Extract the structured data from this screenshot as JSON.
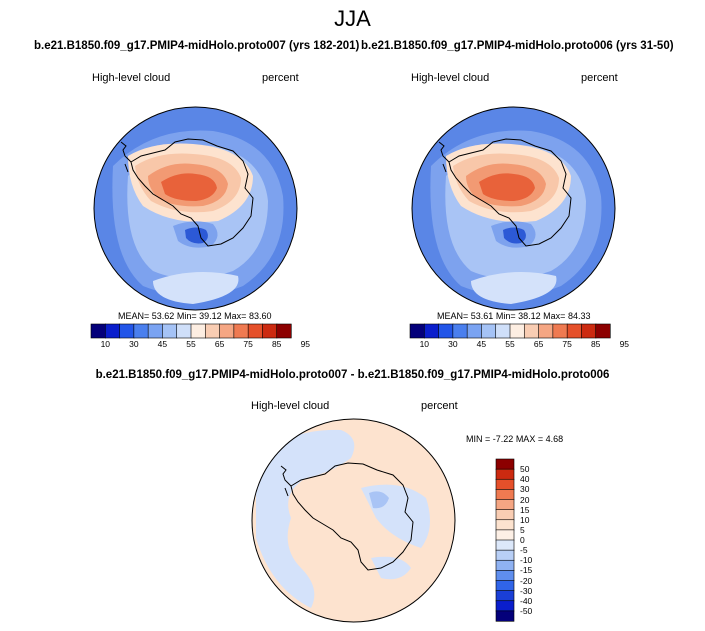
{
  "season": "JJA",
  "panels": [
    {
      "title": "b.e21.B1850.f09_g17.PMIP4-midHolo.proto007 (yrs 182-201)",
      "variable": "High-level cloud",
      "units": "percent",
      "stats": {
        "mean_label": "MEAN=",
        "mean": "53.62",
        "min_label": "Min=",
        "min": "39.12",
        "max_label": "Max=",
        "max": "83.60"
      }
    },
    {
      "title": "b.e21.B1850.f09_g17.PMIP4-midHolo.proto006 (yrs 31-50)",
      "variable": "High-level cloud",
      "units": "percent",
      "stats": {
        "mean_label": "MEAN=",
        "mean": "53.61",
        "min_label": "Min=",
        "min": "38.12",
        "max_label": "Max=",
        "max": "84.33"
      }
    }
  ],
  "abs_colorbar": {
    "colors": [
      "#04007a",
      "#0a1ecc",
      "#2255e8",
      "#4a7fee",
      "#7aa3f2",
      "#a5c3f6",
      "#cfdff9",
      "#fdeee2",
      "#f9cdb3",
      "#f5a683",
      "#ef7a51",
      "#e5502a",
      "#cc2a10",
      "#8c0000"
    ],
    "tick_labels": [
      "10",
      "30",
      "45",
      "55",
      "65",
      "75",
      "85",
      "95"
    ]
  },
  "difference": {
    "title": "b.e21.B1850.f09_g17.PMIP4-midHolo.proto007 - b.e21.B1850.f09_g17.PMIP4-midHolo.proto006",
    "variable": "High-level cloud",
    "units": "percent",
    "stats": {
      "min_label": "MIN =",
      "min": "-7.22",
      "max_label": "MAX =",
      "max": "4.68"
    },
    "colorbar": {
      "colors": [
        "#8c0000",
        "#cc2a10",
        "#e5502a",
        "#ef7a51",
        "#f5a683",
        "#f9cdb3",
        "#fde3cf",
        "#fdf0e6",
        "#dce8fa",
        "#b8cff6",
        "#8fb2f2",
        "#5f8eee",
        "#3064e8",
        "#1a3fd6",
        "#0a1ecc",
        "#04007a"
      ],
      "labels": [
        "50",
        "40",
        "30",
        "20",
        "15",
        "10",
        "5",
        "0",
        "-5",
        "-10",
        "-15",
        "-20",
        "-30",
        "-40",
        "-50"
      ]
    }
  },
  "map_colors": {
    "ocean_blue": "#5a86e6",
    "mid_blue": "#7da2ee",
    "light_blue": "#a9c4f5",
    "pale_blue": "#d4e2fa",
    "pale_orange": "#fde3cf",
    "light_orange": "#f8c7a9",
    "orange": "#f29a73",
    "deep_orange": "#e8623a",
    "red_orange": "#d9401e",
    "deep_blue": "#2c59d6"
  }
}
